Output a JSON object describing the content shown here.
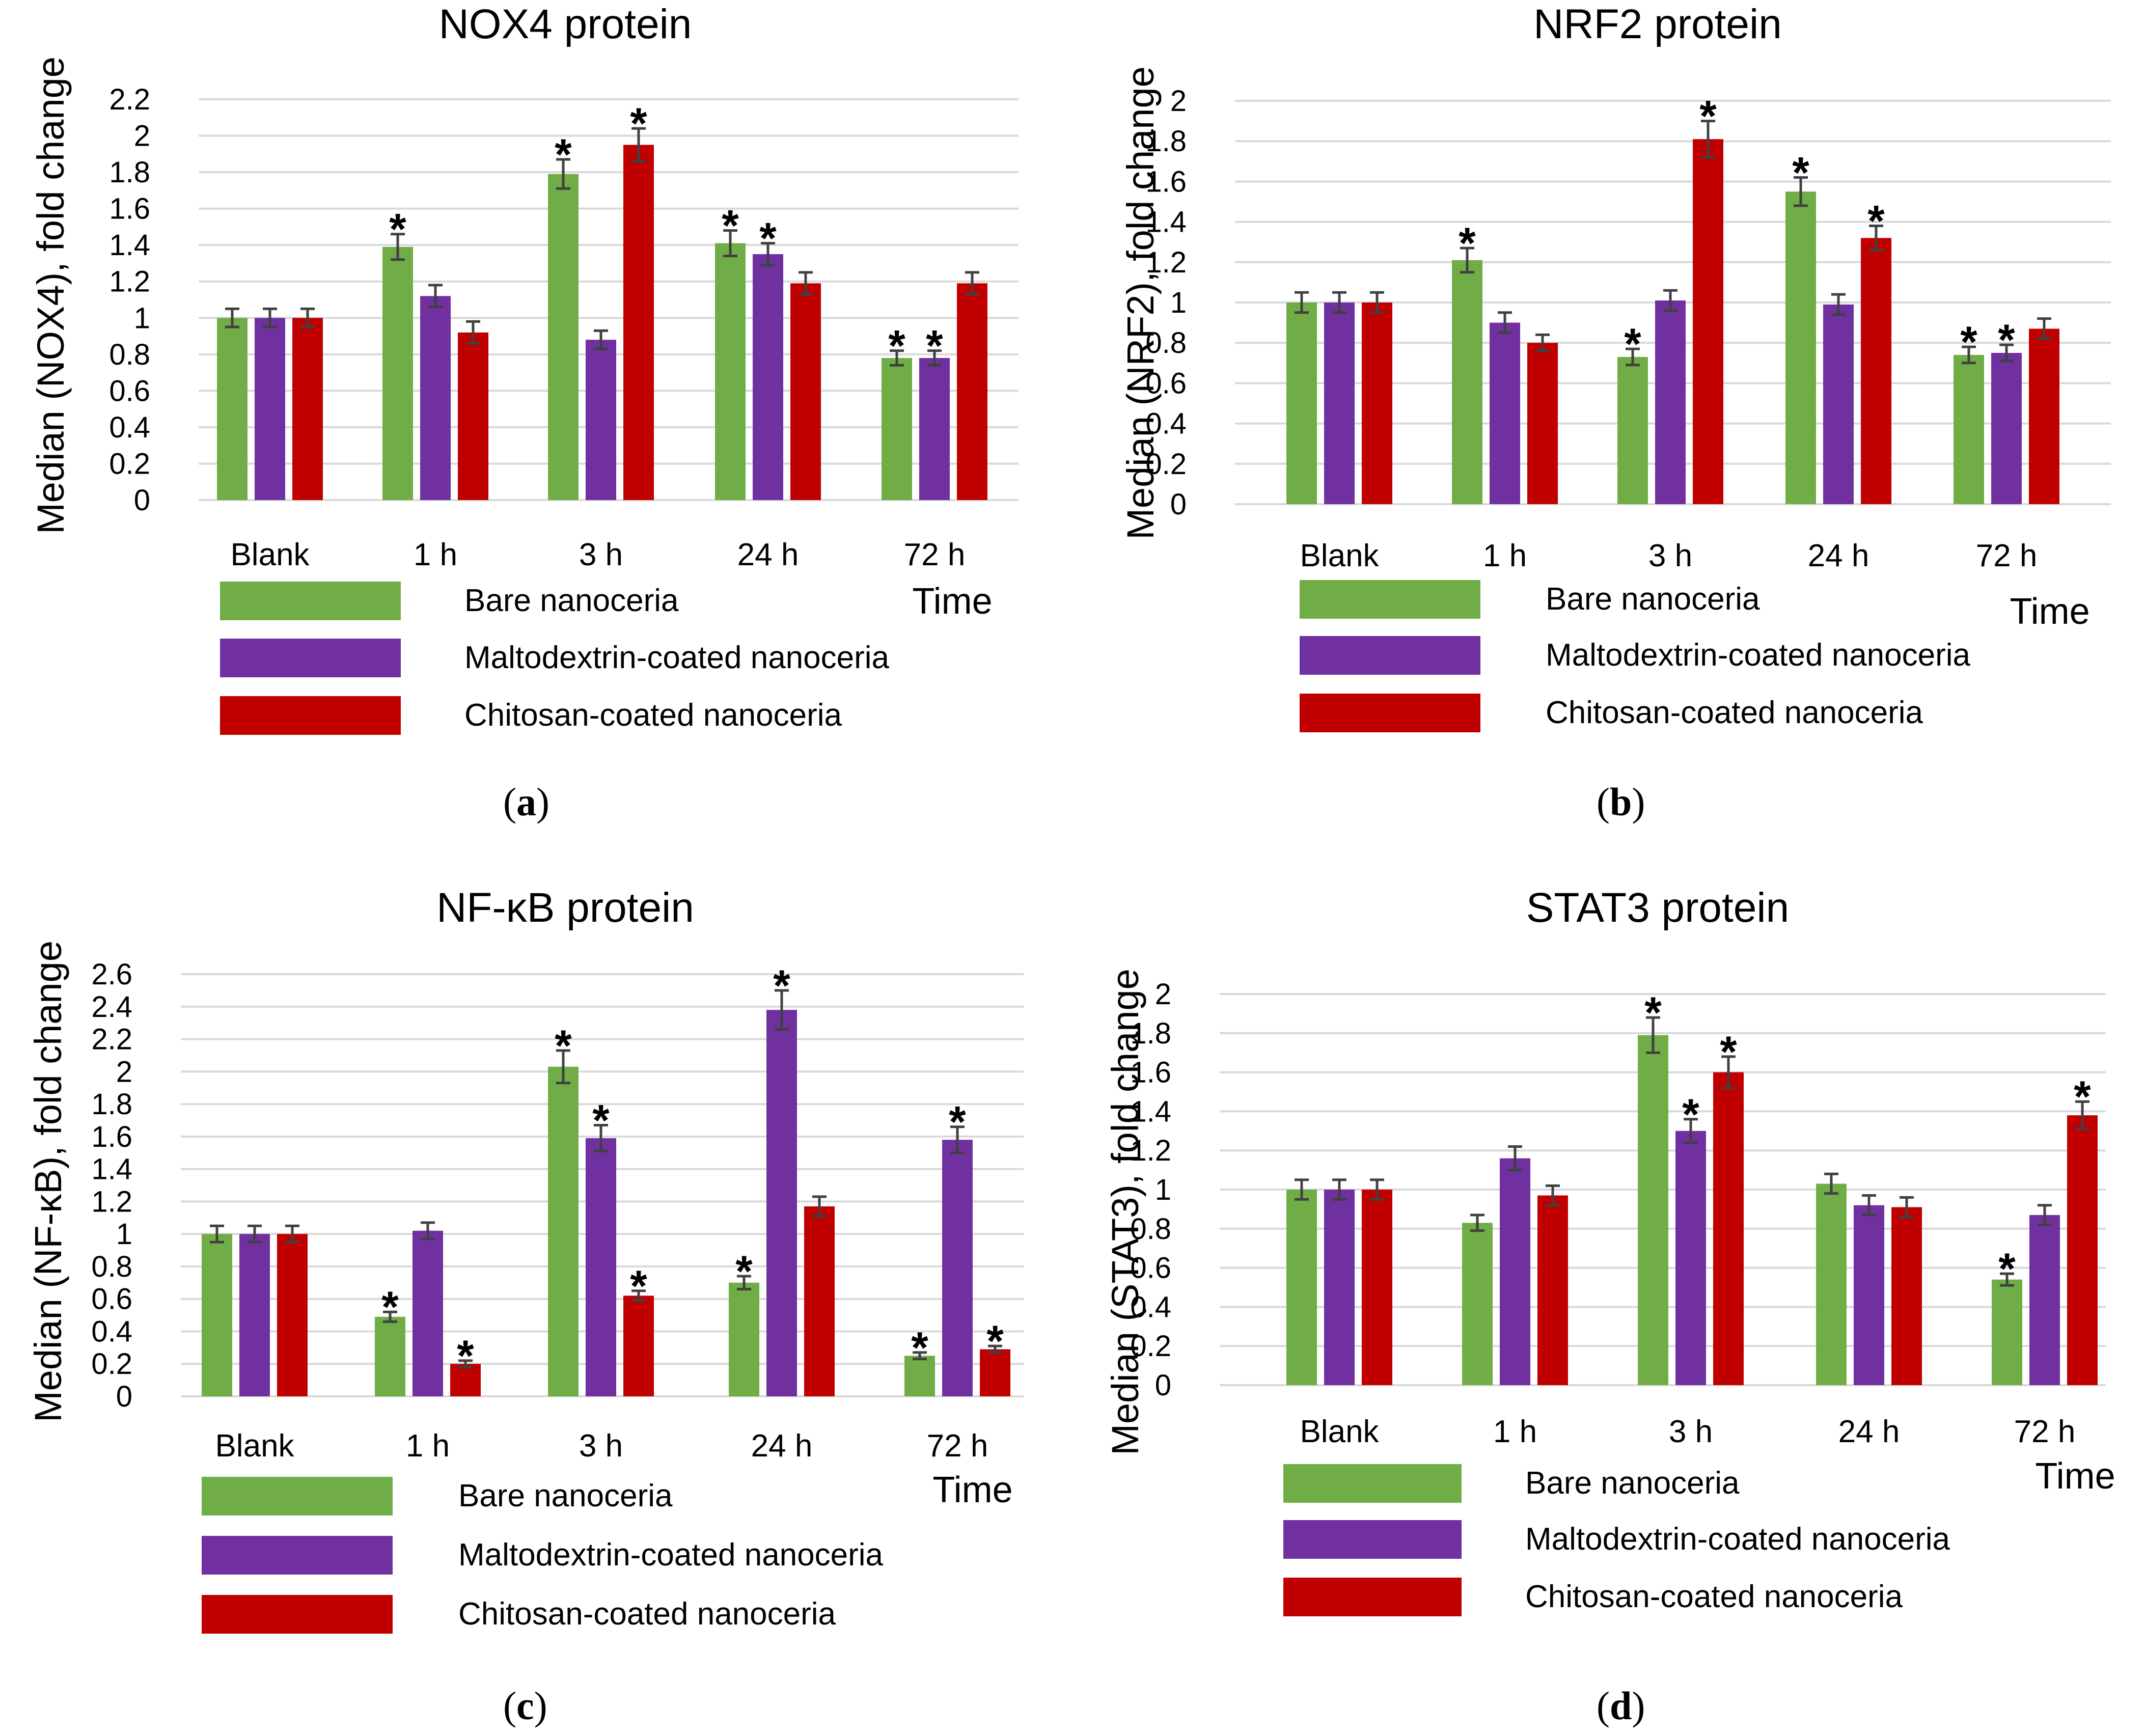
{
  "legend": {
    "series": [
      {
        "name": "Bare nanoceria",
        "color": "#70ad47"
      },
      {
        "name": "Maltodextrin-coated nanoceria",
        "color": "#7030a0"
      },
      {
        "name": "Chitosan-coated nanoceria",
        "color": "#c00000"
      }
    ]
  },
  "chart_data": [
    {
      "type": "bar",
      "panel": "a",
      "title": "NOX4 protein",
      "xlabel": "Time",
      "ylabel": "Median (NOX4), fold change",
      "categories": [
        "Blank",
        "1 h",
        "3 h",
        "24 h",
        "72 h"
      ],
      "ylim": [
        0,
        2.2
      ],
      "yticks": [
        "0",
        "0.2",
        "0.4",
        "0.6",
        "0.8",
        "1",
        "1.2",
        "1.4",
        "1.6",
        "1.8",
        "2",
        "2.2"
      ],
      "series": [
        {
          "name": "Bare nanoceria",
          "values": [
            1.0,
            1.39,
            1.79,
            1.41,
            0.78
          ],
          "errors": [
            0.05,
            0.07,
            0.08,
            0.07,
            0.04
          ],
          "significant": [
            false,
            true,
            true,
            true,
            true
          ]
        },
        {
          "name": "Maltodextrin-coated nanoceria",
          "values": [
            1.0,
            1.12,
            0.88,
            1.35,
            0.78
          ],
          "errors": [
            0.05,
            0.06,
            0.05,
            0.06,
            0.04
          ],
          "significant": [
            false,
            false,
            false,
            true,
            true
          ]
        },
        {
          "name": "Chitosan-coated nanoceria",
          "values": [
            1.0,
            0.92,
            1.95,
            1.19,
            1.19
          ],
          "errors": [
            0.05,
            0.06,
            0.09,
            0.06,
            0.06
          ],
          "significant": [
            false,
            false,
            true,
            false,
            false
          ]
        }
      ]
    },
    {
      "type": "bar",
      "panel": "b",
      "title": "NRF2 protein",
      "xlabel": "Time",
      "ylabel": "Median (NRF2), fold change",
      "categories": [
        "Blank",
        "1 h",
        "3 h",
        "24 h",
        "72 h"
      ],
      "ylim": [
        0,
        2.0
      ],
      "yticks": [
        "0",
        "0.2",
        "0.4",
        "0.6",
        "0.8",
        "1",
        "1.2",
        "1.4",
        "1.6",
        "1.8",
        "2"
      ],
      "series": [
        {
          "name": "Bare nanoceria",
          "values": [
            1.0,
            1.21,
            0.73,
            1.55,
            0.74
          ],
          "errors": [
            0.05,
            0.06,
            0.04,
            0.07,
            0.04
          ],
          "significant": [
            false,
            true,
            true,
            true,
            true
          ]
        },
        {
          "name": "Maltodextrin-coated nanoceria",
          "values": [
            1.0,
            0.9,
            1.01,
            0.99,
            0.75
          ],
          "errors": [
            0.05,
            0.05,
            0.05,
            0.05,
            0.04
          ],
          "significant": [
            false,
            false,
            false,
            false,
            true
          ]
        },
        {
          "name": "Chitosan-coated nanoceria",
          "values": [
            1.0,
            0.8,
            1.81,
            1.32,
            0.87
          ],
          "errors": [
            0.05,
            0.04,
            0.09,
            0.06,
            0.05
          ],
          "significant": [
            false,
            false,
            true,
            true,
            false
          ]
        }
      ]
    },
    {
      "type": "bar",
      "panel": "c",
      "title": "NF-κB protein",
      "xlabel": "Time",
      "ylabel": "Median (NF-κB), fold change",
      "categories": [
        "Blank",
        "1 h",
        "3 h",
        "24 h",
        "72 h"
      ],
      "ylim": [
        0,
        2.6
      ],
      "yticks": [
        "0",
        "0.2",
        "0.4",
        "0.6",
        "0.8",
        "1",
        "1.2",
        "1.4",
        "1.6",
        "1.8",
        "2",
        "2.2",
        "2.4",
        "2.6"
      ],
      "series": [
        {
          "name": "Bare nanoceria",
          "values": [
            1.0,
            0.49,
            2.03,
            0.7,
            0.25
          ],
          "errors": [
            0.05,
            0.03,
            0.1,
            0.04,
            0.02
          ],
          "significant": [
            false,
            true,
            true,
            true,
            true
          ]
        },
        {
          "name": "Maltodextrin-coated nanoceria",
          "values": [
            1.0,
            1.02,
            1.59,
            2.38,
            1.58
          ],
          "errors": [
            0.05,
            0.05,
            0.08,
            0.12,
            0.08
          ],
          "significant": [
            false,
            false,
            true,
            true,
            true
          ]
        },
        {
          "name": "Chitosan-coated nanoceria",
          "values": [
            1.0,
            0.2,
            0.62,
            1.17,
            0.29
          ],
          "errors": [
            0.05,
            0.02,
            0.03,
            0.06,
            0.02
          ],
          "significant": [
            false,
            true,
            true,
            false,
            true
          ]
        }
      ]
    },
    {
      "type": "bar",
      "panel": "d",
      "title": "STAT3 protein",
      "xlabel": "Time",
      "ylabel": "Median (STAT3), fold change",
      "categories": [
        "Blank",
        "1 h",
        "3 h",
        "24 h",
        "72 h"
      ],
      "ylim": [
        0,
        2.0
      ],
      "yticks": [
        "0",
        "0.2",
        "0.4",
        "0.6",
        "0.8",
        "1",
        "1.2",
        "1.4",
        "1.6",
        "1.8",
        "2"
      ],
      "series": [
        {
          "name": "Bare nanoceria",
          "values": [
            1.0,
            0.83,
            1.79,
            1.03,
            0.54
          ],
          "errors": [
            0.05,
            0.04,
            0.09,
            0.05,
            0.03
          ],
          "significant": [
            false,
            false,
            true,
            false,
            true
          ]
        },
        {
          "name": "Maltodextrin-coated nanoceria",
          "values": [
            1.0,
            1.16,
            1.3,
            0.92,
            0.87
          ],
          "errors": [
            0.05,
            0.06,
            0.06,
            0.05,
            0.05
          ],
          "significant": [
            false,
            false,
            true,
            false,
            false
          ]
        },
        {
          "name": "Chitosan-coated nanoceria",
          "values": [
            1.0,
            0.97,
            1.6,
            0.91,
            1.38
          ],
          "errors": [
            0.05,
            0.05,
            0.08,
            0.05,
            0.07
          ],
          "significant": [
            false,
            false,
            true,
            false,
            true
          ]
        }
      ]
    }
  ],
  "panel_labels": [
    "a",
    "b",
    "c",
    "d"
  ],
  "significance_marker": "*"
}
